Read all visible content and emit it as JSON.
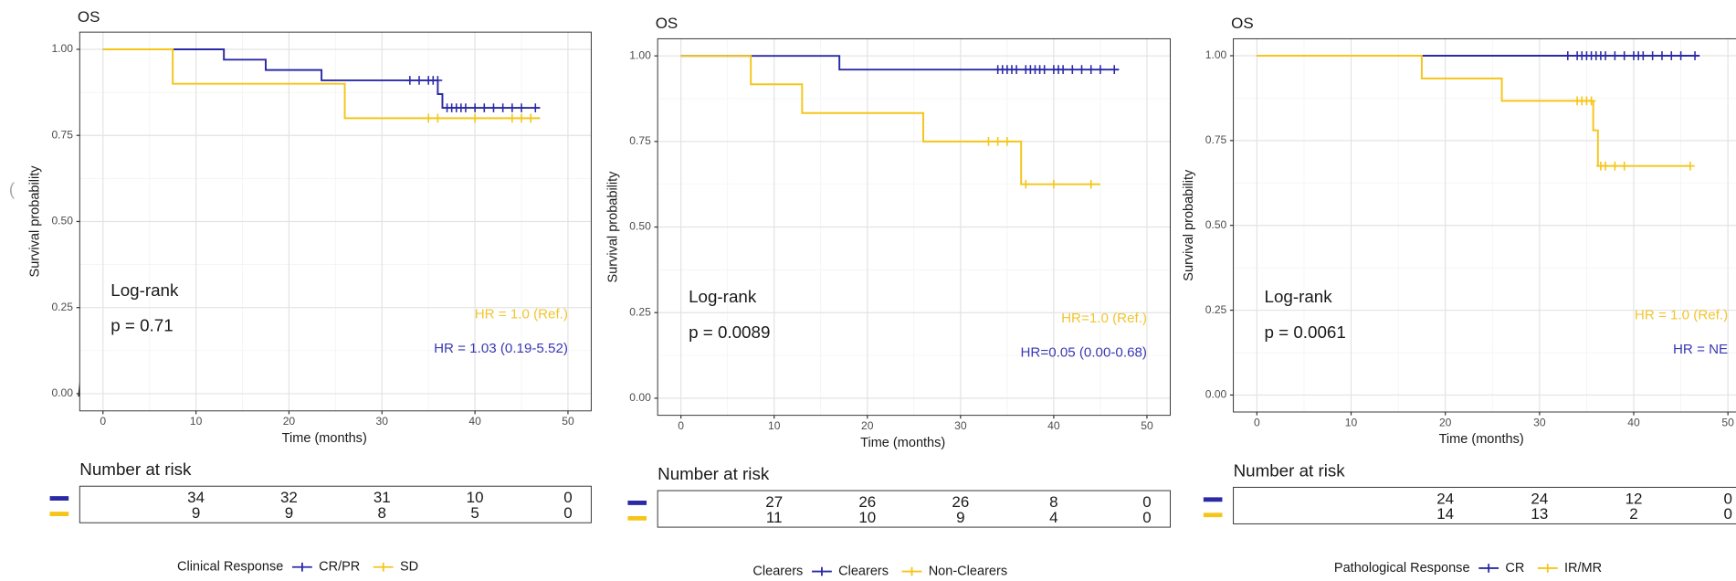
{
  "chart_data": [
    {
      "type": "step",
      "title": "OS",
      "x_label": "Time (months)",
      "y_label": "Survival probability",
      "xlim": [
        -2.5,
        52.5
      ],
      "ylim": [
        -0.05,
        1.05
      ],
      "xticks": [
        0,
        10,
        20,
        30,
        40,
        50
      ],
      "yticks": [
        {
          "value": 0,
          "label": "0.00"
        },
        {
          "value": 0.25,
          "label": "0.25"
        },
        {
          "value": 0.5,
          "label": "0.50"
        },
        {
          "value": 0.75,
          "label": "0.75"
        },
        {
          "value": 1,
          "label": "1.00"
        }
      ],
      "grid": true,
      "annotations": [
        "Log-rank",
        "p = 0.71"
      ],
      "legend_title": "Clinical Response",
      "series": [
        {
          "name": "CR/PR",
          "color": "#2b2aa6",
          "hr": "HR = 1.03 (0.19-5.52)",
          "x": [
            0,
            13,
            17.5,
            23.5,
            36,
            36.5,
            47
          ],
          "values": [
            1,
            0.97,
            0.94,
            0.91,
            0.87,
            0.83,
            0.83
          ],
          "censor_x": [
            33,
            34,
            35,
            35.5,
            36,
            37,
            37.5,
            38,
            38.5,
            39,
            40,
            41,
            42,
            43,
            44,
            45,
            46.5
          ],
          "censor_values": [
            0.91,
            0.91,
            0.91,
            0.91,
            0.91,
            0.83,
            0.83,
            0.83,
            0.83,
            0.83,
            0.83,
            0.83,
            0.83,
            0.83,
            0.83,
            0.83,
            0.83
          ]
        },
        {
          "name": "SD",
          "color": "#f5c518",
          "hr": "HR = 1.0 (Ref.)",
          "x": [
            0,
            7.5,
            26,
            47
          ],
          "values": [
            1,
            0.9,
            0.8,
            0.8
          ],
          "censor_x": [
            35,
            36,
            40,
            44,
            45,
            46
          ],
          "censor_values": [
            0.8,
            0.8,
            0.8,
            0.8,
            0.8,
            0.8
          ]
        }
      ],
      "risk_table": {
        "title": "Number at risk",
        "times": [
          10,
          20,
          30,
          40,
          50
        ],
        "rows": [
          [
            34,
            32,
            31,
            10,
            0
          ],
          [
            9,
            9,
            8,
            5,
            0
          ]
        ]
      }
    },
    {
      "type": "step",
      "title": "OS",
      "x_label": "Time (months)",
      "y_label": "Survival probability",
      "xlim": [
        -2.5,
        52.5
      ],
      "ylim": [
        -0.05,
        1.05
      ],
      "xticks": [
        0,
        10,
        20,
        30,
        40,
        50
      ],
      "yticks": [
        {
          "value": 0,
          "label": "0.00"
        },
        {
          "value": 0.25,
          "label": "0.25"
        },
        {
          "value": 0.5,
          "label": "0.50"
        },
        {
          "value": 0.75,
          "label": "0.75"
        },
        {
          "value": 1,
          "label": "1.00"
        }
      ],
      "grid": true,
      "annotations": [
        "Log-rank",
        "p = 0.0089"
      ],
      "legend_title": "Clearers",
      "series": [
        {
          "name": "Clearers",
          "color": "#2b2aa6",
          "hr": "HR=0.05 (0.00-0.68)",
          "x": [
            0,
            17,
            47
          ],
          "values": [
            1,
            0.96,
            0.96
          ],
          "censor_x": [
            34,
            34.5,
            35,
            35.5,
            36,
            37,
            37.5,
            38,
            38.5,
            39,
            40,
            40.5,
            41,
            42,
            43,
            44,
            45,
            46.5
          ],
          "censor_values": [
            0.96,
            0.96,
            0.96,
            0.96,
            0.96,
            0.96,
            0.96,
            0.96,
            0.96,
            0.96,
            0.96,
            0.96,
            0.96,
            0.96,
            0.96,
            0.96,
            0.96,
            0.96
          ]
        },
        {
          "name": "Non-Clearers",
          "color": "#f5c518",
          "hr": "HR=1.0 (Ref.)",
          "x": [
            0,
            7.5,
            13,
            26,
            36.5,
            45
          ],
          "values": [
            1,
            0.917,
            0.833,
            0.75,
            0.625,
            0.625
          ],
          "censor_x": [
            33,
            34,
            35,
            37,
            40,
            44
          ],
          "censor_values": [
            0.75,
            0.75,
            0.75,
            0.625,
            0.625,
            0.625
          ]
        }
      ],
      "risk_table": {
        "title": "Number at risk",
        "times": [
          10,
          20,
          30,
          40,
          50
        ],
        "rows": [
          [
            27,
            26,
            26,
            8,
            0
          ],
          [
            11,
            10,
            9,
            4,
            0
          ]
        ]
      }
    },
    {
      "type": "step",
      "title": "OS",
      "x_label": "Time (months)",
      "y_label": "Survival probability",
      "xlim": [
        -2.5,
        52.5
      ],
      "ylim": [
        -0.05,
        1.05
      ],
      "xticks": [
        0,
        10,
        20,
        30,
        40,
        50
      ],
      "yticks": [
        {
          "value": 0,
          "label": "0.00"
        },
        {
          "value": 0.25,
          "label": "0.25"
        },
        {
          "value": 0.5,
          "label": "0.50"
        },
        {
          "value": 0.75,
          "label": "0.75"
        },
        {
          "value": 1,
          "label": "1.00"
        }
      ],
      "grid": true,
      "annotations": [
        "Log-rank",
        "p = 0.0061"
      ],
      "legend_title": "Pathological Response",
      "series": [
        {
          "name": "CR",
          "color": "#2b2aa6",
          "hr": "HR = NE",
          "x": [
            0,
            47
          ],
          "values": [
            1,
            1
          ],
          "censor_x": [
            33,
            34,
            34.5,
            35,
            35.5,
            36,
            36.5,
            37,
            38,
            39,
            40,
            40.5,
            41,
            42,
            43,
            44,
            45,
            46.5
          ],
          "censor_values": [
            1,
            1,
            1,
            1,
            1,
            1,
            1,
            1,
            1,
            1,
            1,
            1,
            1,
            1,
            1,
            1,
            1,
            1
          ]
        },
        {
          "name": "IR/MR",
          "color": "#f5c518",
          "hr": "HR = 1.0 (Ref.)",
          "x": [
            0,
            17.5,
            26,
            35.7,
            36.2,
            46
          ],
          "values": [
            1,
            0.933,
            0.867,
            0.78,
            0.675,
            0.675
          ],
          "censor_x": [
            34,
            34.5,
            35,
            35.5,
            36.5,
            37,
            38,
            39,
            46
          ],
          "censor_values": [
            0.867,
            0.867,
            0.867,
            0.867,
            0.675,
            0.675,
            0.675,
            0.675,
            0.675
          ]
        }
      ],
      "risk_table": {
        "title": "Number at risk",
        "times": [
          20,
          30,
          40,
          50
        ],
        "rows": [
          [
            24,
            24,
            12,
            0
          ],
          [
            14,
            13,
            2,
            0
          ]
        ]
      }
    }
  ]
}
